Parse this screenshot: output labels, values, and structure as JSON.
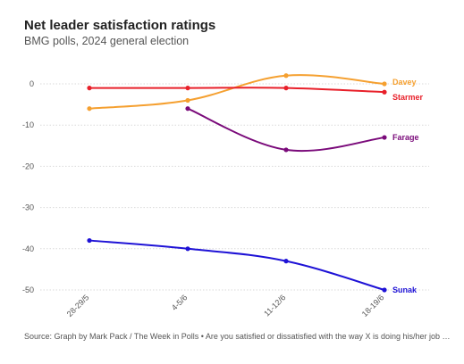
{
  "title": "Net leader satisfaction ratings",
  "subtitle": "BMG polls, 2024 general election",
  "source": "Source: Graph by Mark Pack / The Week in Polls • Are you satisfied or dissatisfied with the way X is doing his/her job as…",
  "chart_data": {
    "type": "line",
    "categories": [
      "28-29/5",
      "4-5/6",
      "11-12/6",
      "18-19/6"
    ],
    "ylim": [
      -50,
      0
    ],
    "yticks": [
      0,
      -10,
      -20,
      -30,
      -40,
      -50
    ],
    "grid": true,
    "series": [
      {
        "name": "Davey",
        "color": "#f5a030",
        "values": [
          -6,
          -4,
          2,
          0
        ]
      },
      {
        "name": "Starmer",
        "color": "#e8202a",
        "values": [
          -1,
          -1,
          -1,
          -2
        ]
      },
      {
        "name": "Farage",
        "color": "#7a0a7a",
        "values": [
          null,
          -6,
          -16,
          -13
        ]
      },
      {
        "name": "Sunak",
        "color": "#1e12d6",
        "values": [
          -38,
          -40,
          -43,
          -50
        ]
      }
    ]
  }
}
